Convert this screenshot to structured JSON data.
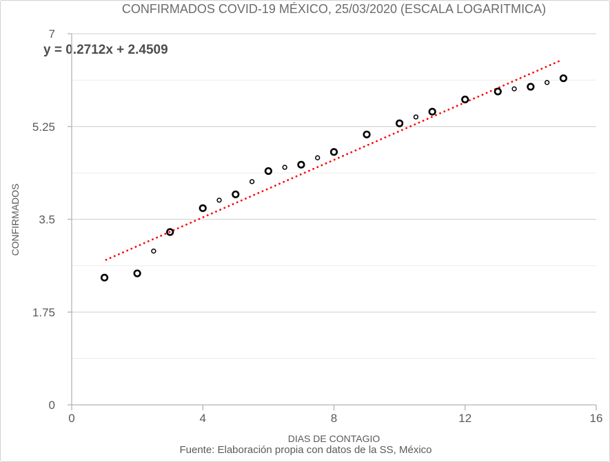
{
  "chart_data": {
    "type": "scatter",
    "title": "CONFIRMADOS COVID-19 MÉXICO, 25/03/2020 (ESCALA LOGARITMICA)",
    "xlabel": "DIAS DE CONTAGIO",
    "ylabel": "CONFIRMADOS",
    "source_note": "Fuente: Elaboración propia con datos de la SS, México",
    "xlim": [
      0,
      16
    ],
    "ylim": [
      0,
      7
    ],
    "x_ticks": [
      {
        "v": 0,
        "label": "0"
      },
      {
        "v": 4,
        "label": "4"
      },
      {
        "v": 8,
        "label": "8"
      },
      {
        "v": 12,
        "label": "12"
      },
      {
        "v": 16,
        "label": "16"
      }
    ],
    "y_ticks": [
      {
        "v": 0,
        "label": "0"
      },
      {
        "v": 1.75,
        "label": "1.75"
      },
      {
        "v": 3.5,
        "label": "3.5"
      },
      {
        "v": 5.25,
        "label": "5.25"
      },
      {
        "v": 7,
        "label": "7"
      }
    ],
    "y_minor_interval": 0.875,
    "grid": true,
    "legend": "none",
    "marker": "open-circle",
    "marker_color": "#000000",
    "points": [
      {
        "x": 1,
        "y": 2.4,
        "size": "large"
      },
      {
        "x": 2,
        "y": 2.48,
        "size": "large"
      },
      {
        "x": 2.5,
        "y": 2.9,
        "size": "small"
      },
      {
        "x": 3,
        "y": 3.26,
        "size": "large"
      },
      {
        "x": 4,
        "y": 3.71,
        "size": "large"
      },
      {
        "x": 4.5,
        "y": 3.86,
        "size": "small"
      },
      {
        "x": 5,
        "y": 3.97,
        "size": "large"
      },
      {
        "x": 5.5,
        "y": 4.21,
        "size": "small"
      },
      {
        "x": 6,
        "y": 4.41,
        "size": "large"
      },
      {
        "x": 6.5,
        "y": 4.48,
        "size": "small"
      },
      {
        "x": 7,
        "y": 4.53,
        "size": "large"
      },
      {
        "x": 7.5,
        "y": 4.66,
        "size": "small"
      },
      {
        "x": 8,
        "y": 4.77,
        "size": "large"
      },
      {
        "x": 9,
        "y": 5.1,
        "size": "large"
      },
      {
        "x": 10,
        "y": 5.31,
        "size": "large"
      },
      {
        "x": 10.5,
        "y": 5.43,
        "size": "small"
      },
      {
        "x": 11,
        "y": 5.53,
        "size": "large"
      },
      {
        "x": 12,
        "y": 5.76,
        "size": "large"
      },
      {
        "x": 13,
        "y": 5.91,
        "size": "large"
      },
      {
        "x": 13.5,
        "y": 5.96,
        "size": "small"
      },
      {
        "x": 14,
        "y": 6.0,
        "size": "large"
      },
      {
        "x": 14.5,
        "y": 6.08,
        "size": "small"
      },
      {
        "x": 15,
        "y": 6.16,
        "size": "large"
      }
    ],
    "trendline": {
      "type": "linear",
      "label": "y = 0.2712x + 2.4509",
      "slope": 0.2712,
      "intercept": 2.4509,
      "x_start": 1.05,
      "x_end": 14.95,
      "color": "#ff0000",
      "style": "dotted"
    },
    "colors": {
      "axis": "#b3b3b3",
      "grid_major": "#d6d6d6",
      "grid_minor": "#ebebeb",
      "tick_text": "#595959",
      "title_text": "#6b6b6b",
      "equation_text": "#4d4d4d",
      "background": "#ffffff"
    }
  }
}
